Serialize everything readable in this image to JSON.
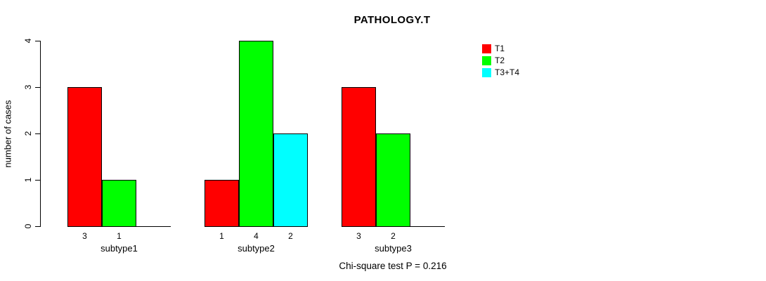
{
  "chart_data": {
    "type": "bar",
    "title": "PATHOLOGY.T",
    "ylabel": "number of cases",
    "xlabel": "",
    "ylim": [
      0,
      4
    ],
    "yticks": [
      "0",
      "1",
      "2",
      "3",
      "4"
    ],
    "grid": false,
    "legend_position": "top-right",
    "categories": [
      "subtype1",
      "subtype2",
      "subtype3"
    ],
    "series": [
      {
        "name": "T1",
        "color": "#ff0000",
        "values": [
          3,
          1,
          3
        ]
      },
      {
        "name": "T2",
        "color": "#00ff00",
        "values": [
          1,
          4,
          2
        ]
      },
      {
        "name": "T3+T4",
        "color": "#00ffff",
        "values": [
          null,
          2,
          null
        ]
      }
    ],
    "bar_count_labels": [
      [
        "3",
        "1"
      ],
      [
        "1",
        "4",
        "2"
      ],
      [
        "3",
        "2"
      ]
    ],
    "annotation": "Chi-square test P = 0.216",
    "colors": {
      "axis": "#000000",
      "background": "#ffffff",
      "text": "#000000"
    }
  }
}
